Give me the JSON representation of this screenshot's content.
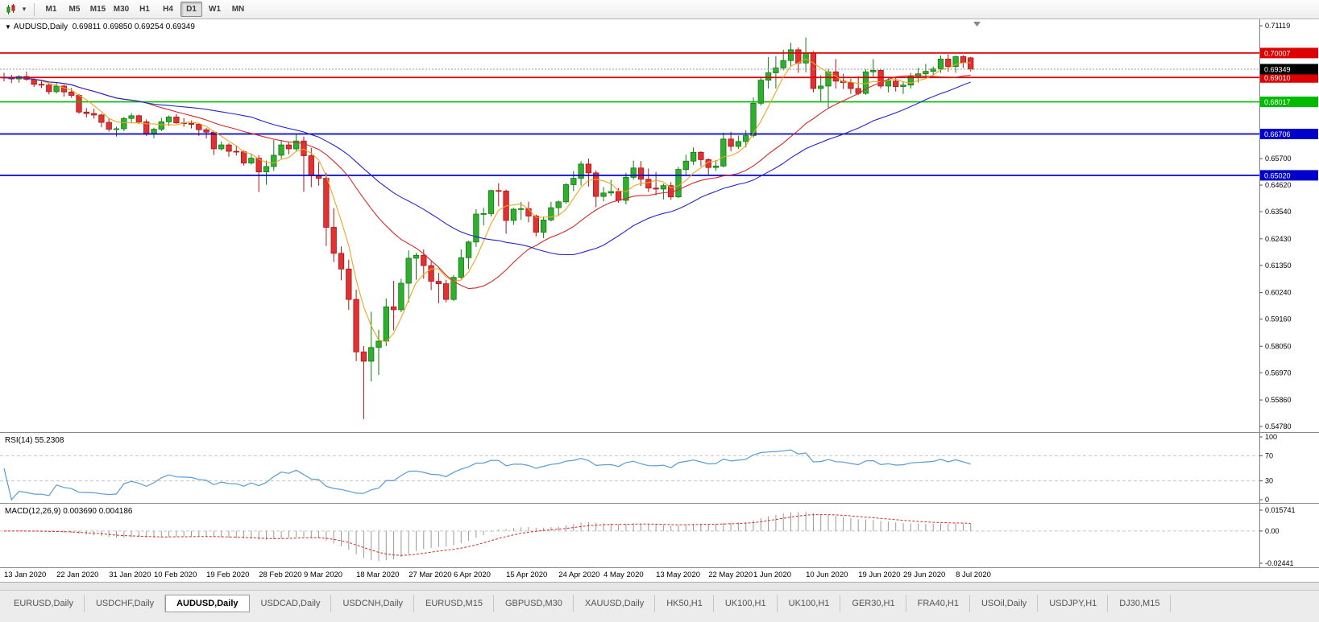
{
  "toolbar": {
    "timeframes": [
      "M1",
      "M5",
      "M15",
      "M30",
      "H1",
      "H4",
      "D1",
      "W1",
      "MN"
    ],
    "active_timeframe": "D1"
  },
  "chart_data": {
    "type": "candlestick",
    "symbol": "AUDUSD",
    "timeframe": "Daily",
    "symbol_info": "AUDUSD,Daily  0.69811 0.69850 0.69254 0.69349",
    "ohlc": {
      "open": 0.69811,
      "high": 0.6985,
      "low": 0.69254,
      "close": 0.69349
    },
    "current_price": 0.69349,
    "y_axis": {
      "max": 0.71119,
      "min": 0.5478,
      "ticks": [
        0.71119,
        0.657,
        0.6462,
        0.6354,
        0.6243,
        0.6135,
        0.6024,
        0.5916,
        0.5805,
        0.5697,
        0.5586,
        0.5478
      ]
    },
    "hlines": [
      {
        "price": 0.70007,
        "color": "#dd0000"
      },
      {
        "price": 0.6901,
        "color": "#dd0000"
      },
      {
        "price": 0.68017,
        "color": "#00bb00"
      },
      {
        "price": 0.66706,
        "color": "#0000cc"
      },
      {
        "price": 0.6502,
        "color": "#0000cc"
      }
    ],
    "colors": {
      "up": "#2fae2f",
      "up_border": "#117a11",
      "down": "#e03232",
      "down_border": "#aa1515",
      "macd_hist": "#999999",
      "macd_signal": "#d42a2a",
      "rsi_line": "#5a9bd4",
      "grid": "#c8c8c8",
      "axis_text": "#000000",
      "current_label_bg": "#000000"
    },
    "moving_averages": [
      {
        "period": 5,
        "color": "#efa520",
        "name": "fast-ma"
      },
      {
        "period": 20,
        "color": "#d42a2a",
        "name": "mid-ma"
      },
      {
        "period": 34,
        "color": "#2525cc",
        "name": "slow-ma"
      }
    ],
    "x_labels": [
      {
        "label": "13 Jan 2020",
        "index": 0
      },
      {
        "label": "22 Jan 2020",
        "index": 7
      },
      {
        "label": "31 Jan 2020",
        "index": 14
      },
      {
        "label": "10 Feb 2020",
        "index": 20
      },
      {
        "label": "19 Feb 2020",
        "index": 27
      },
      {
        "label": "28 Feb 2020",
        "index": 34
      },
      {
        "label": "9 Mar 2020",
        "index": 40
      },
      {
        "label": "18 Mar 2020",
        "index": 47
      },
      {
        "label": "27 Mar 2020",
        "index": 54
      },
      {
        "label": "6 Apr 2020",
        "index": 60
      },
      {
        "label": "15 Apr 2020",
        "index": 67
      },
      {
        "label": "24 Apr 2020",
        "index": 74
      },
      {
        "label": "4 May 2020",
        "index": 80
      },
      {
        "label": "13 May 2020",
        "index": 87
      },
      {
        "label": "22 May 2020",
        "index": 94
      },
      {
        "label": "1 Jun 2020",
        "index": 100
      },
      {
        "label": "10 Jun 2020",
        "index": 107
      },
      {
        "label": "19 Jun 2020",
        "index": 114
      },
      {
        "label": "29 Jun 2020",
        "index": 120
      },
      {
        "label": "8 Jul 2020",
        "index": 127
      }
    ],
    "candles": [
      [
        0.6902,
        0.692,
        0.6885,
        0.69
      ],
      [
        0.69,
        0.6912,
        0.6878,
        0.6895
      ],
      [
        0.6895,
        0.691,
        0.688,
        0.6905
      ],
      [
        0.6905,
        0.6925,
        0.6888,
        0.6893
      ],
      [
        0.6893,
        0.69,
        0.6862,
        0.6873
      ],
      [
        0.6873,
        0.6885,
        0.6858,
        0.687
      ],
      [
        0.687,
        0.6878,
        0.6832,
        0.6843
      ],
      [
        0.6843,
        0.688,
        0.6836,
        0.6866
      ],
      [
        0.6866,
        0.6872,
        0.6823,
        0.6842
      ],
      [
        0.6842,
        0.6858,
        0.6818,
        0.6828
      ],
      [
        0.6828,
        0.6834,
        0.6753,
        0.676
      ],
      [
        0.676,
        0.6776,
        0.6738,
        0.6754
      ],
      [
        0.6754,
        0.6774,
        0.6733,
        0.6748
      ],
      [
        0.6748,
        0.6754,
        0.6698,
        0.6718
      ],
      [
        0.6718,
        0.6734,
        0.668,
        0.669
      ],
      [
        0.669,
        0.67,
        0.666,
        0.6692
      ],
      [
        0.6692,
        0.674,
        0.6682,
        0.6734
      ],
      [
        0.6734,
        0.6756,
        0.6718,
        0.6745
      ],
      [
        0.6745,
        0.675,
        0.6712,
        0.672
      ],
      [
        0.672,
        0.673,
        0.6662,
        0.667
      ],
      [
        0.667,
        0.6696,
        0.6653,
        0.669
      ],
      [
        0.669,
        0.6736,
        0.6682,
        0.672
      ],
      [
        0.672,
        0.6746,
        0.6703,
        0.674
      ],
      [
        0.674,
        0.6752,
        0.6712,
        0.6716
      ],
      [
        0.6716,
        0.6736,
        0.67,
        0.6714
      ],
      [
        0.6714,
        0.6726,
        0.6693,
        0.671
      ],
      [
        0.671,
        0.6716,
        0.6663,
        0.6688
      ],
      [
        0.6688,
        0.6695,
        0.6652,
        0.6678
      ],
      [
        0.6678,
        0.6684,
        0.6585,
        0.661
      ],
      [
        0.661,
        0.664,
        0.6603,
        0.6626
      ],
      [
        0.6626,
        0.6632,
        0.6578,
        0.66
      ],
      [
        0.66,
        0.6622,
        0.6583,
        0.6598
      ],
      [
        0.6598,
        0.6604,
        0.6542,
        0.6552
      ],
      [
        0.6552,
        0.659,
        0.6546,
        0.6572
      ],
      [
        0.6572,
        0.6585,
        0.6434,
        0.6516
      ],
      [
        0.6516,
        0.6562,
        0.6464,
        0.6538
      ],
      [
        0.6538,
        0.6646,
        0.652,
        0.6584
      ],
      [
        0.6584,
        0.6645,
        0.657,
        0.6626
      ],
      [
        0.6626,
        0.664,
        0.6588,
        0.661
      ],
      [
        0.661,
        0.667,
        0.66,
        0.6642
      ],
      [
        0.6642,
        0.666,
        0.6435,
        0.6582
      ],
      [
        0.6582,
        0.6614,
        0.6454,
        0.65
      ],
      [
        0.65,
        0.6556,
        0.646,
        0.649
      ],
      [
        0.649,
        0.6512,
        0.6214,
        0.629
      ],
      [
        0.629,
        0.6368,
        0.6148,
        0.6184
      ],
      [
        0.6184,
        0.6212,
        0.6074,
        0.612
      ],
      [
        0.612,
        0.6158,
        0.5953,
        0.5996
      ],
      [
        0.5996,
        0.6036,
        0.5744,
        0.5782
      ],
      [
        0.5782,
        0.5806,
        0.5508,
        0.5744
      ],
      [
        0.5744,
        0.5946,
        0.5662,
        0.58
      ],
      [
        0.58,
        0.5872,
        0.5688,
        0.5826
      ],
      [
        0.5826,
        0.6,
        0.5806,
        0.5966
      ],
      [
        0.5966,
        0.6072,
        0.587,
        0.5954
      ],
      [
        0.5954,
        0.608,
        0.5944,
        0.6062
      ],
      [
        0.6062,
        0.6196,
        0.5984,
        0.6164
      ],
      [
        0.6164,
        0.6186,
        0.6076,
        0.6176
      ],
      [
        0.6176,
        0.62,
        0.608,
        0.6134
      ],
      [
        0.6134,
        0.6152,
        0.6034,
        0.607
      ],
      [
        0.607,
        0.6104,
        0.598,
        0.606
      ],
      [
        0.606,
        0.6076,
        0.5984,
        0.5996
      ],
      [
        0.5996,
        0.6096,
        0.599,
        0.6086
      ],
      [
        0.6086,
        0.62,
        0.608,
        0.6166
      ],
      [
        0.6166,
        0.6236,
        0.612,
        0.623
      ],
      [
        0.623,
        0.6364,
        0.621,
        0.6344
      ],
      [
        0.6344,
        0.637,
        0.6298,
        0.6346
      ],
      [
        0.6346,
        0.6444,
        0.6334,
        0.644
      ],
      [
        0.644,
        0.647,
        0.6376,
        0.6438
      ],
      [
        0.6438,
        0.6444,
        0.6264,
        0.6318
      ],
      [
        0.6318,
        0.637,
        0.63,
        0.6364
      ],
      [
        0.6364,
        0.6394,
        0.632,
        0.6366
      ],
      [
        0.6366,
        0.6394,
        0.631,
        0.6336
      ],
      [
        0.6336,
        0.6342,
        0.6253,
        0.627
      ],
      [
        0.627,
        0.6334,
        0.6246,
        0.632
      ],
      [
        0.632,
        0.6394,
        0.6314,
        0.637
      ],
      [
        0.637,
        0.64,
        0.6338,
        0.6394
      ],
      [
        0.6394,
        0.647,
        0.6386,
        0.6464
      ],
      [
        0.6464,
        0.652,
        0.6438,
        0.649
      ],
      [
        0.649,
        0.656,
        0.646,
        0.6548
      ],
      [
        0.6548,
        0.657,
        0.6456,
        0.6512
      ],
      [
        0.6512,
        0.6522,
        0.6372,
        0.6416
      ],
      [
        0.6416,
        0.6454,
        0.6396,
        0.643
      ],
      [
        0.643,
        0.6484,
        0.6418,
        0.6436
      ],
      [
        0.6436,
        0.645,
        0.639,
        0.64
      ],
      [
        0.64,
        0.6512,
        0.6384,
        0.6494
      ],
      [
        0.6494,
        0.6562,
        0.6484,
        0.6532
      ],
      [
        0.6532,
        0.656,
        0.6458,
        0.6486
      ],
      [
        0.6486,
        0.653,
        0.6434,
        0.645
      ],
      [
        0.645,
        0.6516,
        0.642,
        0.6446
      ],
      [
        0.6446,
        0.6468,
        0.6404,
        0.646
      ],
      [
        0.646,
        0.6474,
        0.6402,
        0.6414
      ],
      [
        0.6414,
        0.6536,
        0.641,
        0.6526
      ],
      [
        0.6526,
        0.6586,
        0.6504,
        0.656
      ],
      [
        0.656,
        0.6616,
        0.6544,
        0.6596
      ],
      [
        0.6596,
        0.66,
        0.6538,
        0.6566
      ],
      [
        0.6566,
        0.6572,
        0.6504,
        0.6534
      ],
      [
        0.6534,
        0.6564,
        0.652,
        0.654
      ],
      [
        0.654,
        0.6676,
        0.6534,
        0.665
      ],
      [
        0.665,
        0.668,
        0.66,
        0.662
      ],
      [
        0.662,
        0.6664,
        0.661,
        0.664
      ],
      [
        0.664,
        0.6686,
        0.6616,
        0.6664
      ],
      [
        0.6664,
        0.682,
        0.6656,
        0.6796
      ],
      [
        0.6796,
        0.69,
        0.6786,
        0.689
      ],
      [
        0.689,
        0.6984,
        0.6856,
        0.692
      ],
      [
        0.692,
        0.6988,
        0.6856,
        0.694
      ],
      [
        0.694,
        0.7014,
        0.693,
        0.697
      ],
      [
        0.697,
        0.7042,
        0.6946,
        0.7014
      ],
      [
        0.7014,
        0.7024,
        0.692,
        0.696
      ],
      [
        0.696,
        0.7064,
        0.6922,
        0.7
      ],
      [
        0.7,
        0.7008,
        0.684,
        0.6856
      ],
      [
        0.6856,
        0.691,
        0.68,
        0.6866
      ],
      [
        0.6866,
        0.6936,
        0.6776,
        0.6924
      ],
      [
        0.6924,
        0.6976,
        0.6856,
        0.6886
      ],
      [
        0.6886,
        0.6916,
        0.6854,
        0.688
      ],
      [
        0.688,
        0.6896,
        0.6834,
        0.6856
      ],
      [
        0.6856,
        0.6906,
        0.683,
        0.6836
      ],
      [
        0.6836,
        0.6934,
        0.683,
        0.6924
      ],
      [
        0.6924,
        0.6976,
        0.6904,
        0.693
      ],
      [
        0.693,
        0.6936,
        0.6856,
        0.6866
      ],
      [
        0.6866,
        0.69,
        0.684,
        0.6886
      ],
      [
        0.6886,
        0.69,
        0.6844,
        0.6864
      ],
      [
        0.6864,
        0.6886,
        0.6834,
        0.687
      ],
      [
        0.687,
        0.692,
        0.6856,
        0.6906
      ],
      [
        0.6906,
        0.694,
        0.688,
        0.6916
      ],
      [
        0.6916,
        0.6956,
        0.6904,
        0.6926
      ],
      [
        0.6926,
        0.6946,
        0.691,
        0.6936
      ],
      [
        0.6936,
        0.699,
        0.692,
        0.6976
      ],
      [
        0.6976,
        0.6996,
        0.6924,
        0.6946
      ],
      [
        0.6946,
        0.699,
        0.692,
        0.6986
      ],
      [
        0.6986,
        0.6992,
        0.694,
        0.6962
      ],
      [
        0.69811,
        0.6985,
        0.69254,
        0.69349
      ]
    ],
    "indicators": {
      "rsi": {
        "label_text": "RSI(14) 55.2308",
        "period": 14,
        "axis_labels": [
          100,
          70,
          30,
          0
        ],
        "dashed_levels": [
          70,
          30
        ],
        "range": [
          0,
          100
        ]
      },
      "macd": {
        "label_text": "MACD(12,26,9) 0.003690 0.004186",
        "fast": 12,
        "slow": 26,
        "signal": 9,
        "axis_labels": [
          "0.015741",
          "0.00",
          "-0.02441"
        ],
        "range": [
          -0.02441,
          0.015741
        ]
      }
    }
  },
  "tabs": {
    "items": [
      "EURUSD,Daily",
      "USDCHF,Daily",
      "AUDUSD,Daily",
      "USDCAD,Daily",
      "USDCNH,Daily",
      "EURUSD,M15",
      "GBPUSD,M30",
      "XAUUSD,Daily",
      "HK50,H1",
      "UK100,H1",
      "UK100,H1",
      "GER30,H1",
      "FRA40,H1",
      "USOil,Daily",
      "USDJPY,H1",
      "DJ30,M15"
    ],
    "active_index": 2
  }
}
